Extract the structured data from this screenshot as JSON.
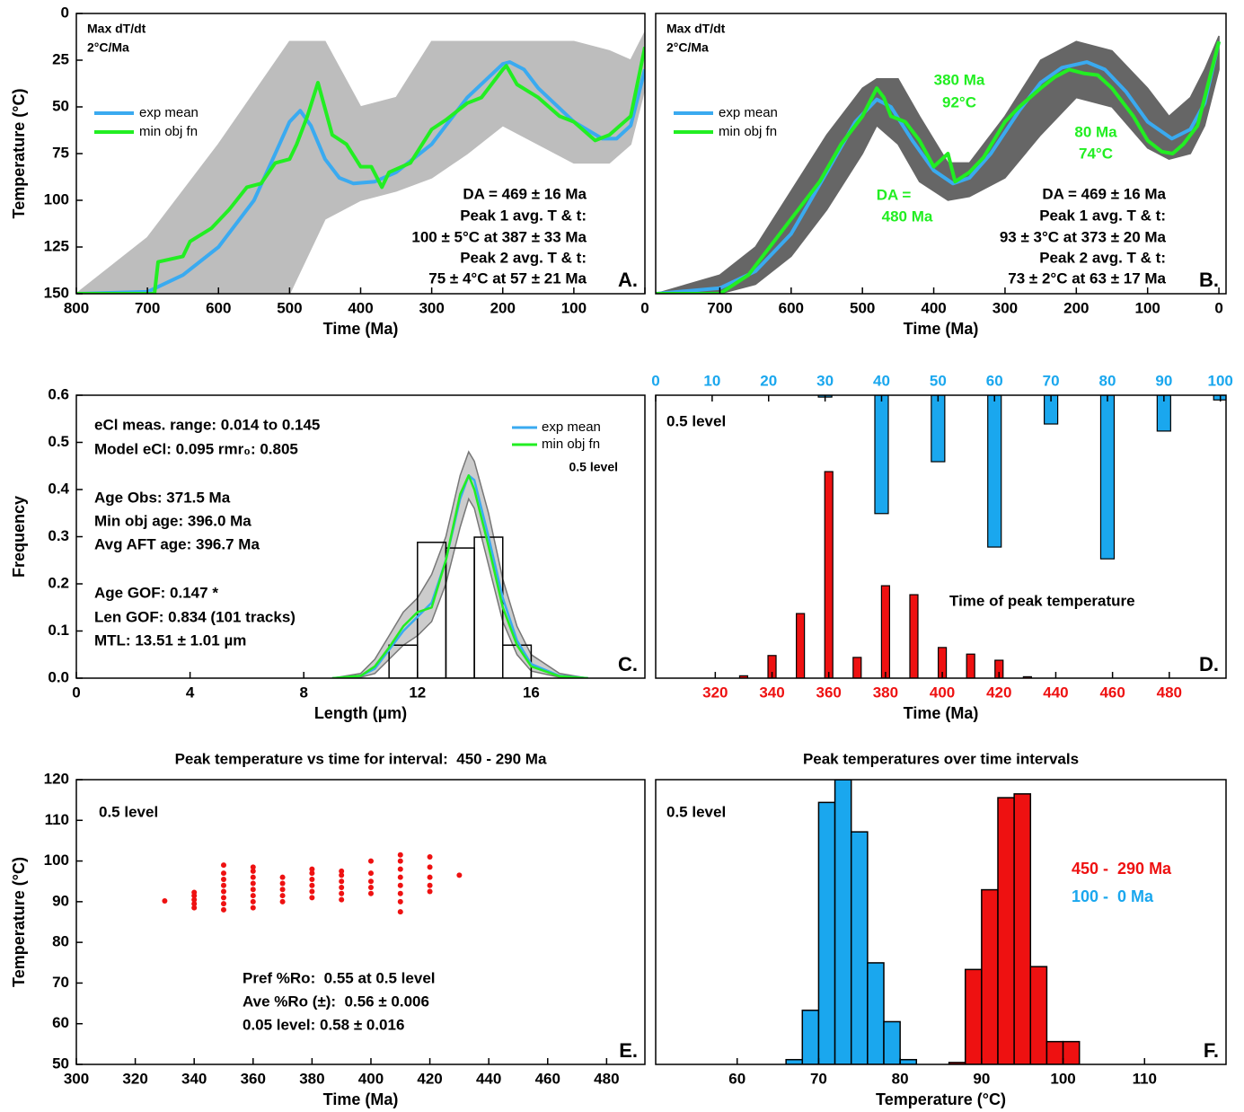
{
  "chart_data": [
    {
      "type": "line",
      "xlabel": "Time (Ma)",
      "ylabel": "Temperature (°C)",
      "xlim": [
        800,
        0
      ],
      "xticks": [
        800,
        700,
        600,
        500,
        400,
        300,
        200,
        100,
        0
      ],
      "ylim": [
        150,
        0
      ],
      "yticks": [
        0,
        25,
        50,
        75,
        100,
        125,
        150
      ],
      "band": {
        "color": "#bdbdbd",
        "x": [
          800,
          700,
          600,
          500,
          450,
          400,
          350,
          300,
          250,
          200,
          150,
          100,
          50,
          20,
          0
        ],
        "lower": [
          150,
          120,
          70,
          15,
          15,
          50,
          45,
          15,
          15,
          15,
          15,
          15,
          20,
          25,
          10
        ],
        "upper": [
          150,
          150,
          150,
          150,
          110,
          100,
          95,
          88,
          75,
          60,
          70,
          80,
          80,
          70,
          40
        ]
      },
      "series": [
        {
          "name": "exp mean",
          "color": "#3aaaf0",
          "x": [
            800,
            700,
            650,
            600,
            550,
            520,
            500,
            485,
            470,
            450,
            430,
            410,
            380,
            350,
            300,
            250,
            200,
            190,
            170,
            150,
            100,
            60,
            40,
            20,
            0
          ],
          "values": [
            150,
            149,
            140,
            125,
            100,
            75,
            58,
            52,
            60,
            78,
            88,
            91,
            90,
            85,
            70,
            45,
            27,
            26,
            30,
            40,
            58,
            67,
            67,
            60,
            30
          ]
        },
        {
          "name": "min obj fn",
          "color": "#22ee22",
          "x": [
            800,
            690,
            685,
            650,
            640,
            610,
            585,
            560,
            540,
            520,
            500,
            490,
            475,
            460,
            440,
            420,
            400,
            385,
            370,
            360,
            330,
            300,
            280,
            250,
            230,
            200,
            195,
            180,
            150,
            120,
            100,
            70,
            50,
            20,
            0
          ],
          "values": [
            150,
            150,
            133,
            130,
            122,
            115,
            105,
            93,
            91,
            80,
            78,
            70,
            55,
            37,
            65,
            70,
            82,
            82,
            93,
            85,
            80,
            62,
            57,
            48,
            45,
            30,
            28,
            38,
            45,
            55,
            58,
            68,
            65,
            55,
            18
          ]
        }
      ],
      "annotations": [
        "Max dT/dt",
        "2°C/Ma",
        "DA = 469 ± 16 Ma",
        "Peak 1 avg. T & t:",
        "100 ± 5°C at 387 ± 33 Ma",
        "Peak 2 avg. T & t:",
        "75 ± 4°C at 57 ± 21 Ma"
      ],
      "panel_label": "A."
    },
    {
      "type": "line",
      "xlabel": "Time (Ma)",
      "xlim": [
        790,
        -10
      ],
      "xticks": [
        700,
        600,
        500,
        400,
        300,
        200,
        100,
        0
      ],
      "ylim": [
        150,
        0
      ],
      "band": {
        "color": "#666666",
        "x": [
          790,
          700,
          650,
          600,
          550,
          500,
          480,
          450,
          420,
          380,
          350,
          300,
          250,
          200,
          150,
          100,
          70,
          40,
          20,
          0
        ],
        "lower": [
          150,
          140,
          125,
          95,
          65,
          40,
          35,
          35,
          55,
          80,
          80,
          55,
          25,
          15,
          20,
          40,
          55,
          45,
          30,
          12
        ],
        "upper": [
          150,
          150,
          145,
          130,
          105,
          75,
          60,
          70,
          90,
          100,
          98,
          88,
          65,
          45,
          50,
          72,
          78,
          75,
          60,
          30
        ]
      },
      "series": [
        {
          "name": "exp mean",
          "color": "#3aaaf0",
          "x": [
            790,
            700,
            650,
            600,
            550,
            510,
            480,
            460,
            430,
            400,
            373,
            350,
            320,
            280,
            250,
            220,
            185,
            160,
            130,
            100,
            66,
            40,
            20,
            0
          ],
          "values": [
            150,
            147,
            138,
            118,
            85,
            58,
            46,
            50,
            68,
            84,
            91,
            88,
            75,
            52,
            37,
            29,
            26,
            30,
            42,
            58,
            67,
            62,
            48,
            15
          ]
        },
        {
          "name": "min obj fn",
          "color": "#22ee22",
          "x": [
            790,
            700,
            660,
            640,
            600,
            560,
            530,
            500,
            480,
            470,
            460,
            440,
            420,
            400,
            380,
            370,
            350,
            330,
            300,
            280,
            250,
            230,
            210,
            190,
            170,
            150,
            120,
            100,
            80,
            65,
            50,
            30,
            0
          ],
          "values": [
            150,
            150,
            140,
            130,
            110,
            90,
            70,
            55,
            40,
            45,
            55,
            58,
            68,
            82,
            75,
            90,
            85,
            77,
            58,
            50,
            40,
            34,
            30,
            32,
            33,
            40,
            55,
            68,
            74,
            75,
            70,
            60,
            15
          ]
        }
      ],
      "annotations": [
        "Max dT/dt",
        "2°C/Ma",
        "DA = 469 ± 16 Ma",
        "Peak 1 avg. T & t:",
        "93 ± 3°C at 373 ± 20 Ma",
        "Peak 2 avg. T & t:",
        "73 ± 2°C at 63 ± 17 Ma"
      ],
      "callouts": {
        "color": "#22ee22",
        "texts": [
          "380 Ma",
          "92°C",
          "80 Ma",
          "74°C",
          "DA =",
          "480 Ma"
        ]
      },
      "panel_label": "B."
    },
    {
      "type": "histogram",
      "xlabel": "Length (µm)",
      "ylabel": "Frequency",
      "xlim": [
        0,
        20
      ],
      "xticks": [
        0,
        4,
        8,
        12,
        16
      ],
      "ylim": [
        0,
        0.6
      ],
      "yticks": [
        {
          "value": 0,
          "label": "0.0"
        },
        0.1,
        0.2,
        0.3,
        0.4,
        0.5,
        0.6
      ],
      "bins": [
        11,
        12,
        13,
        14,
        15,
        16
      ],
      "values": [
        0.07,
        0.288,
        0.276,
        0.299,
        0.07
      ],
      "band": {
        "color": "#cccccc",
        "x": [
          9,
          10,
          10.5,
          11,
          11.5,
          12,
          12.5,
          13,
          13.5,
          13.8,
          14,
          14.5,
          15,
          15.5,
          16,
          17,
          18
        ],
        "lower": [
          0,
          0.002,
          0.01,
          0.04,
          0.07,
          0.09,
          0.12,
          0.2,
          0.32,
          0.38,
          0.36,
          0.24,
          0.12,
          0.05,
          0.015,
          0.002,
          0
        ],
        "upper": [
          0,
          0.01,
          0.04,
          0.09,
          0.14,
          0.17,
          0.22,
          0.3,
          0.43,
          0.48,
          0.46,
          0.35,
          0.21,
          0.11,
          0.05,
          0.01,
          0
        ]
      },
      "series": [
        {
          "name": "exp mean",
          "color": "#3aaaf0",
          "x": [
            9,
            10,
            10.5,
            11,
            11.5,
            12,
            12.5,
            13,
            13.5,
            13.8,
            14,
            14.5,
            15,
            15.5,
            16,
            17,
            18
          ],
          "values": [
            0,
            0.005,
            0.02,
            0.06,
            0.1,
            0.13,
            0.16,
            0.25,
            0.38,
            0.43,
            0.42,
            0.3,
            0.17,
            0.08,
            0.03,
            0.005,
            0
          ]
        },
        {
          "name": "min obj fn",
          "color": "#22ee22",
          "x": [
            9,
            10,
            10.5,
            11,
            11.5,
            12,
            12.5,
            13,
            13.5,
            13.8,
            14,
            14.5,
            15,
            15.5,
            16,
            17,
            18
          ],
          "values": [
            0,
            0.005,
            0.025,
            0.065,
            0.11,
            0.14,
            0.15,
            0.25,
            0.39,
            0.43,
            0.4,
            0.28,
            0.15,
            0.07,
            0.025,
            0.004,
            0
          ]
        }
      ],
      "legend_note": "0.5 level",
      "annotations": [
        "eCl meas. range: 0.014 to 0.145",
        "Model eCl: 0.095 rmr₀: 0.805",
        "Age Obs: 371.5 Ma",
        "Min obj age: 396.0 Ma",
        "Avg AFT age: 396.7 Ma",
        "Age GOF: 0.147 *",
        "Len GOF: 0.834 (101 tracks)",
        "MTL: 13.51 ± 1.01 µm"
      ],
      "panel_label": "C."
    },
    {
      "type": "bar",
      "xlabel": "Time (Ma)",
      "xlim": [
        299,
        500
      ],
      "xticks": [
        320,
        340,
        360,
        380,
        400,
        420,
        440,
        460,
        480
      ],
      "x2lim": [
        0,
        101
      ],
      "x2ticks": [
        0,
        10,
        20,
        30,
        40,
        50,
        60,
        70,
        80,
        90,
        100
      ],
      "ylim": [
        0,
        0.6
      ],
      "y2lim": [
        0.6,
        0
      ],
      "series": [
        {
          "color": "#ee1111",
          "x": [
            330,
            340,
            350,
            360,
            370,
            380,
            390,
            400,
            410,
            420,
            430
          ],
          "values": [
            0.005,
            0.048,
            0.137,
            0.438,
            0.044,
            0.196,
            0.177,
            0.065,
            0.051,
            0.038,
            0.003
          ]
        },
        {
          "color": "#1aa7ee",
          "axis": "y2",
          "x": [
            30,
            40,
            50,
            60,
            70,
            80,
            90,
            100
          ],
          "values": [
            0.004,
            0.251,
            0.141,
            0.322,
            0.061,
            0.347,
            0.076,
            0.01
          ]
        }
      ],
      "annotations": [
        "0.5 level",
        "Time of peak temperature"
      ],
      "panel_label": "D."
    },
    {
      "type": "scatter",
      "title": "Peak temperature vs time for interval:  450 - 290 Ma",
      "xlabel": "Time (Ma)",
      "ylabel": "Temperature (°C)",
      "xlim": [
        300,
        493
      ],
      "xticks": [
        300,
        320,
        340,
        360,
        380,
        400,
        420,
        440,
        460,
        480
      ],
      "ylim": [
        50,
        120
      ],
      "yticks": [
        50,
        60,
        70,
        80,
        90,
        100,
        110,
        120
      ],
      "color": "#ee1111",
      "x": [
        330,
        340,
        340,
        340,
        340,
        340,
        350,
        350,
        350,
        350,
        350,
        350,
        350,
        350,
        360,
        360,
        360,
        360,
        360,
        360,
        360,
        360,
        370,
        370,
        370,
        370,
        370,
        380,
        380,
        380,
        380,
        380,
        380,
        390,
        390,
        390,
        390,
        390,
        390,
        400,
        400,
        400,
        400,
        400,
        410,
        410,
        410,
        410,
        410,
        410,
        410,
        410,
        420,
        420,
        420,
        420,
        420,
        430
      ],
      "y": [
        90.2,
        88.5,
        89.5,
        90.5,
        91.5,
        92.3,
        88,
        89.5,
        91,
        92.5,
        94,
        95.5,
        97,
        99,
        88.5,
        90,
        91.5,
        93,
        94.5,
        96,
        97.5,
        98.5,
        90,
        91.5,
        93,
        94.5,
        96,
        91,
        92.5,
        94,
        95.5,
        97,
        98,
        90.5,
        92,
        93.5,
        95,
        96.5,
        97.5,
        92,
        93.5,
        95,
        97,
        100,
        87.5,
        90,
        92,
        94,
        96,
        98,
        100,
        101.5,
        92.5,
        94,
        96,
        98.5,
        101,
        96.5
      ],
      "annotations": [
        "0.5 level",
        "Pref %Ro:  0.55 at 0.5 level",
        "Ave %Ro (±):  0.56 ± 0.006",
        "0.05 level: 0.58 ± 0.016"
      ],
      "panel_label": "E."
    },
    {
      "type": "histogram",
      "title": "Peak temperatures over time intervals",
      "xlabel": "Temperature (°C)",
      "xlim": [
        50,
        120
      ],
      "xticks": [
        60,
        70,
        80,
        90,
        100,
        110
      ],
      "ylim": [
        0,
        0.3
      ],
      "series": [
        {
          "name": "450 -  290 Ma",
          "color": "#ee1111",
          "bins": [
            86,
            88,
            90,
            92,
            94,
            96,
            98,
            100,
            102
          ],
          "values": [
            0.002,
            0.1,
            0.184,
            0.281,
            0.285,
            0.103,
            0.024,
            0.024
          ]
        },
        {
          "name": "100 -  0 Ma",
          "color": "#1aa7ee",
          "bins": [
            66,
            68,
            70,
            72,
            74,
            76,
            78,
            80,
            82
          ],
          "values": [
            0.005,
            0.057,
            0.276,
            0.3,
            0.245,
            0.107,
            0.045,
            0.005
          ]
        }
      ],
      "annotations": [
        "0.5 level"
      ],
      "panel_label": "F."
    }
  ]
}
